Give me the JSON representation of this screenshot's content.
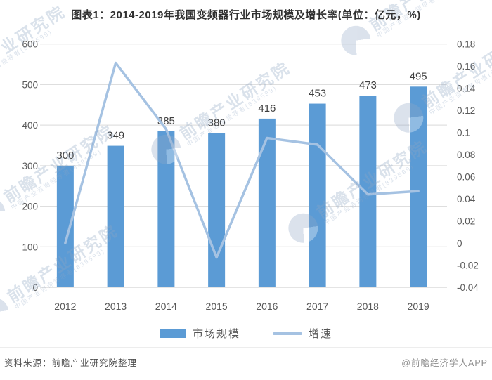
{
  "chart_data": {
    "type": "bar+line",
    "title": "图表1：2014-2019年我国变频器行业市场规模及增长率(单位：亿元，%)",
    "categories": [
      "2012",
      "2013",
      "2014",
      "2015",
      "2016",
      "2017",
      "2018",
      "2019"
    ],
    "series": [
      {
        "name": "市场规模",
        "type": "bar",
        "axis": "left",
        "unit": "亿元",
        "color": "#5B9BD5",
        "values": [
          300,
          349,
          385,
          380,
          416,
          453,
          473,
          495
        ],
        "labels": [
          "300",
          "349",
          "385",
          "380",
          "416",
          "453",
          "473",
          "495"
        ]
      },
      {
        "name": "增速",
        "type": "line",
        "axis": "right",
        "unit": "%",
        "color": "#A5C2E2",
        "values": [
          0.0,
          0.163,
          0.103,
          -0.013,
          0.095,
          0.089,
          0.044,
          0.047
        ]
      }
    ],
    "left_axis": {
      "min": 0,
      "max": 600,
      "step": 100,
      "tick_labels": [
        "0",
        "100",
        "200",
        "300",
        "400",
        "500",
        "600"
      ]
    },
    "right_axis": {
      "min": -0.04,
      "max": 0.18,
      "step": 0.02,
      "tick_labels": [
        "-0.04",
        "-0.02",
        "0",
        "0.02",
        "0.04",
        "0.06",
        "0.08",
        "0.1",
        "0.12",
        "0.14",
        "0.16",
        "0.18"
      ]
    },
    "grid": true,
    "legend_position": "bottom"
  },
  "legend": {
    "items": [
      {
        "label": "市场规模",
        "swatch": "bar"
      },
      {
        "label": "增速",
        "swatch": "line"
      }
    ]
  },
  "footer": {
    "source": "资料来源：前瞻产业研究院整理",
    "credit": "@前瞻经济学人APP"
  },
  "watermark": {
    "text": "前瞻产业研究院",
    "subtext": "中国产业咨询领导者(839599)"
  },
  "colors": {
    "bar": "#5B9BD5",
    "line": "#A5C2E2",
    "grid": "#D9D9D9",
    "axis_line": "#C9C9C9",
    "axis_text": "#595959",
    "data_label": "#404040",
    "title": "#303030",
    "watermark": "#8FA6C4"
  }
}
